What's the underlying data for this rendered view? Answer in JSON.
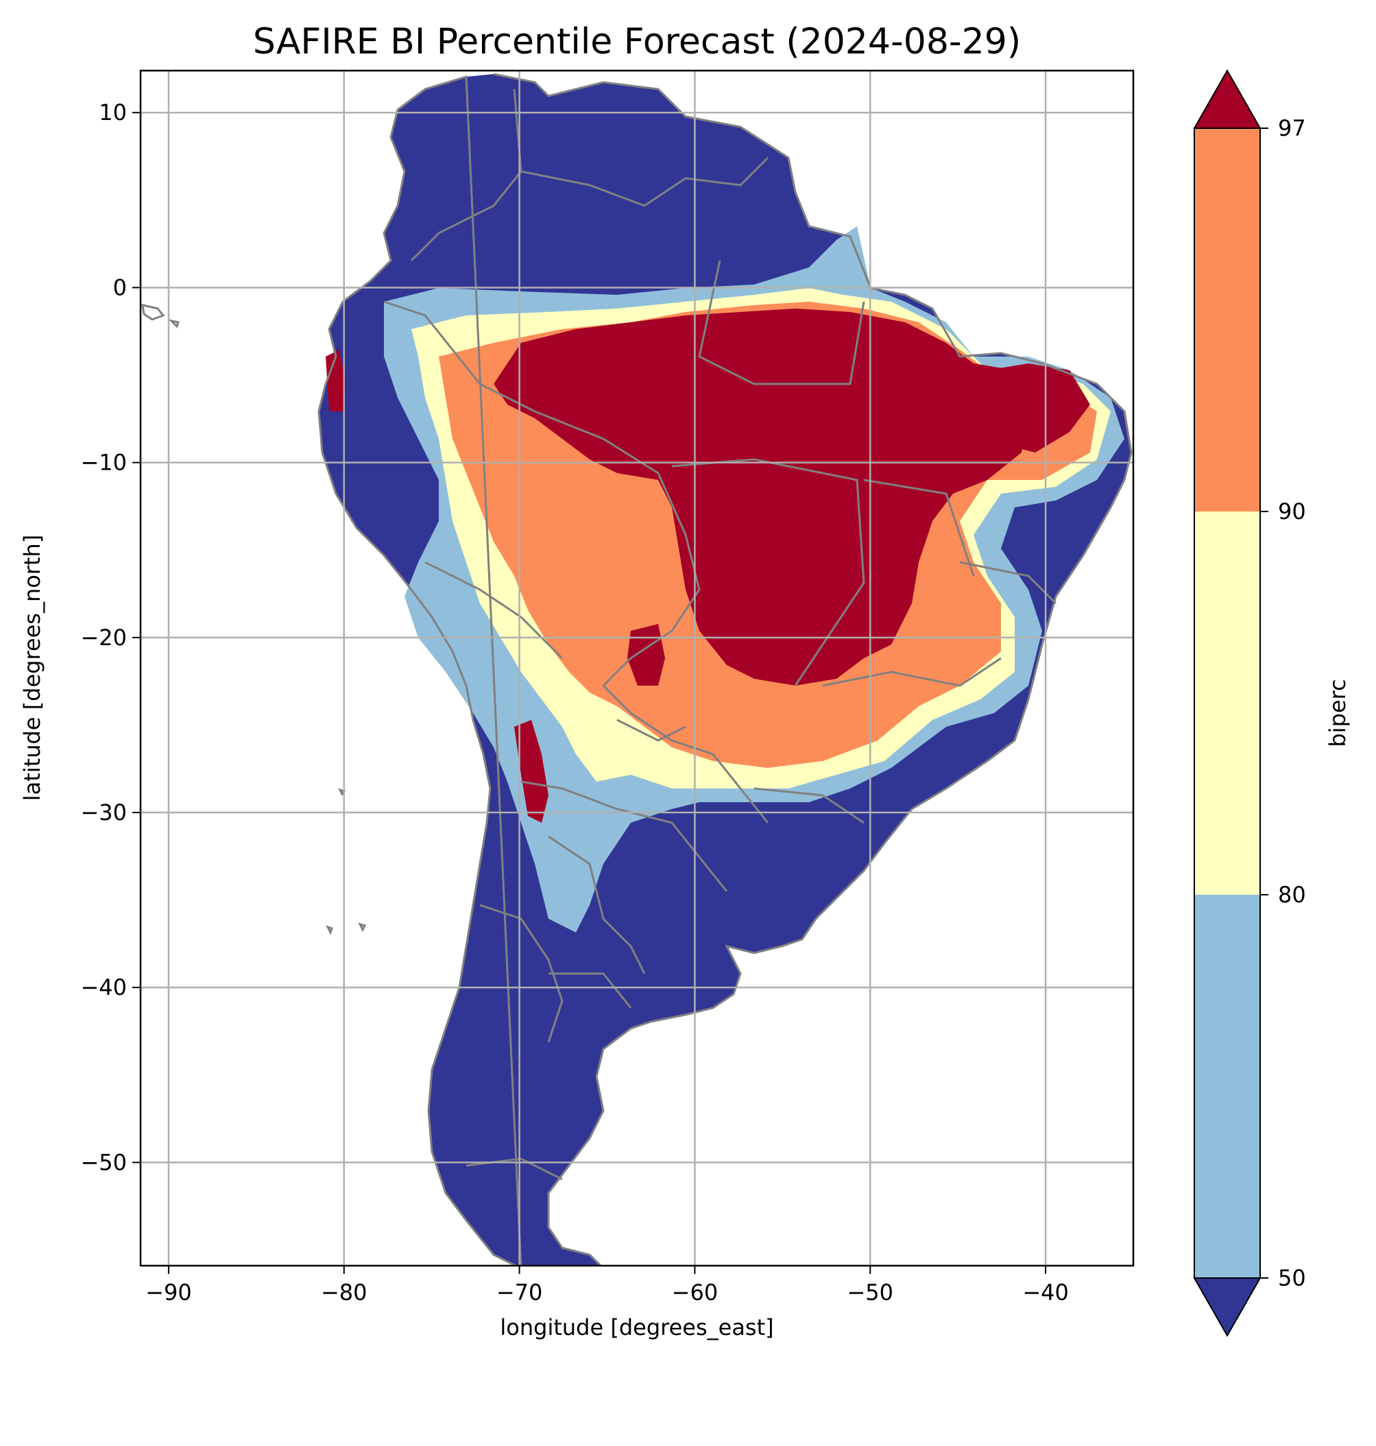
{
  "title": "SAFIRE BI Percentile Forecast (2024-08-29)",
  "xlabel": "longitude [degrees_east]",
  "ylabel": "latitude [degrees_north]",
  "colorbar_label": "biperc",
  "x_ticks": [
    "−90",
    "−80",
    "−70",
    "−60",
    "−50",
    "−40"
  ],
  "y_ticks": [
    "10",
    "0",
    "−10",
    "−20",
    "−30",
    "−40",
    "−50"
  ],
  "colorbar_ticks": [
    "97",
    "90",
    "80",
    "50"
  ],
  "colors": {
    "below_50": "#313695",
    "50_80": "#91bfdb",
    "80_90": "#ffffbf",
    "90_97": "#fc8d59",
    "above_97": "#a50026",
    "borders": "#808080",
    "grid": "#b0b0b0"
  },
  "chart_data": {
    "type": "heatmap",
    "xlim": [
      -91.6,
      -35
    ],
    "ylim": [
      -55.9,
      12.4
    ],
    "xticks": [
      -90,
      -80,
      -70,
      -60,
      -50,
      -40
    ],
    "yticks": [
      10,
      0,
      -10,
      -20,
      -30,
      -40,
      -50
    ],
    "grid": true,
    "colorbar": {
      "boundaries": [
        50,
        80,
        90,
        97
      ],
      "extend": "both",
      "position": "right"
    }
  }
}
